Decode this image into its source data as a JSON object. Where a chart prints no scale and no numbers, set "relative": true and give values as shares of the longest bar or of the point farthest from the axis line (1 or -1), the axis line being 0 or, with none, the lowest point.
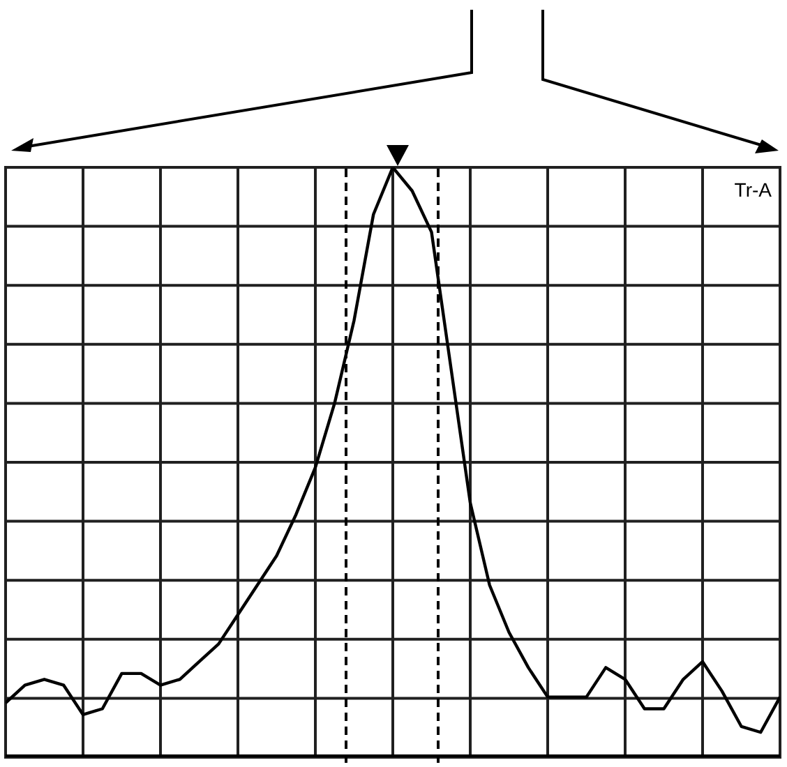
{
  "chart_data": {
    "type": "line",
    "relative": true,
    "categories": [
      null,
      null,
      null,
      null,
      null,
      null,
      null,
      null,
      null,
      null,
      null,
      null,
      null,
      null,
      null,
      null,
      null,
      null,
      null,
      null,
      null,
      null,
      null,
      null,
      null,
      null,
      null,
      null,
      null,
      null,
      null,
      null,
      null,
      null,
      null,
      null,
      null,
      null,
      null,
      null,
      null
    ],
    "series": [
      {
        "color": "#000000",
        "values": [
          0.09,
          0.12,
          0.13,
          0.12,
          0.07,
          0.08,
          0.14,
          0.14,
          0.12,
          0.13,
          0.16,
          0.19,
          0.24,
          0.29,
          0.34,
          0.41,
          0.49,
          0.6,
          0.74,
          0.92,
          1.0,
          0.96,
          0.89,
          0.66,
          0.43,
          0.29,
          0.21,
          0.15,
          0.1,
          0.1,
          0.1,
          0.15,
          0.13,
          0.08,
          0.08,
          0.13,
          0.16,
          0.11,
          0.05,
          0.04,
          0.1
        ]
      }
    ],
    "grid": true,
    "marker": "none",
    "line_style": "solid",
    "annotations": [
      "Tr-A"
    ]
  }
}
